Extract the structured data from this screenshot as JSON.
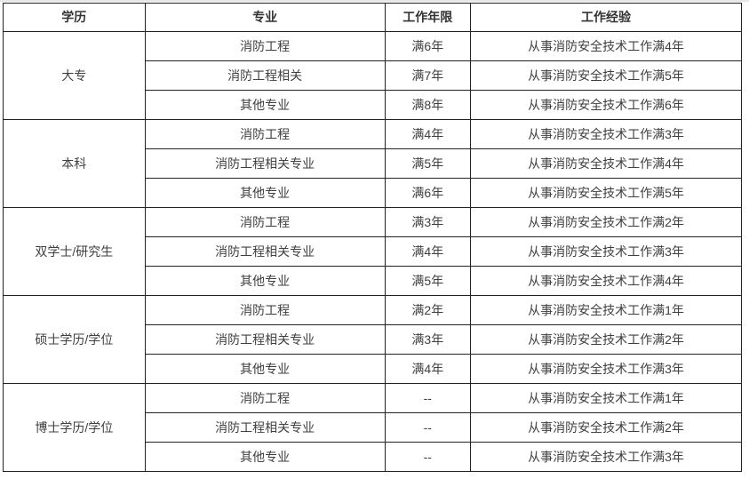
{
  "table": {
    "headers": {
      "education": "学历",
      "major": "专业",
      "years": "工作年限",
      "experience": "工作经验"
    },
    "groups": [
      {
        "education": "大专",
        "rows": [
          {
            "major": "消防工程",
            "years": "满6年",
            "experience": "从事消防安全技术工作满4年"
          },
          {
            "major": "消防工程相关",
            "years": "满7年",
            "experience": "从事消防安全技术工作满5年"
          },
          {
            "major": "其他专业",
            "years": "满8年",
            "experience": "从事消防安全技术工作满6年"
          }
        ]
      },
      {
        "education": "本科",
        "rows": [
          {
            "major": "消防工程",
            "years": "满4年",
            "experience": "从事消防安全技术工作满3年"
          },
          {
            "major": "消防工程相关专业",
            "years": "满5年",
            "experience": "从事消防安全技术工作满4年"
          },
          {
            "major": "其他专业",
            "years": "满6年",
            "experience": "从事消防安全技术工作满5年"
          }
        ]
      },
      {
        "education": "双学士/研究生",
        "rows": [
          {
            "major": "消防工程",
            "years": "满3年",
            "experience": "从事消防安全技术工作满2年"
          },
          {
            "major": "消防工程相关专业",
            "years": "满4年",
            "experience": "从事消防安全技术工作满3年"
          },
          {
            "major": "其他专业",
            "years": "满5年",
            "experience": "从事消防安全技术工作满4年"
          }
        ]
      },
      {
        "education": "硕士学历/学位",
        "rows": [
          {
            "major": "消防工程",
            "years": "满2年",
            "experience": "从事消防安全技术工作满1年"
          },
          {
            "major": "消防工程相关专业",
            "years": "满3年",
            "experience": "从事消防安全技术工作满2年"
          },
          {
            "major": "其他专业",
            "years": "满4年",
            "experience": "从事消防安全技术工作满3年"
          }
        ]
      },
      {
        "education": "博士学历/学位",
        "rows": [
          {
            "major": "消防工程",
            "years": "--",
            "experience": "从事消防安全技术工作满1年"
          },
          {
            "major": "消防工程相关专业",
            "years": "--",
            "experience": "从事消防安全技术工作满2年"
          },
          {
            "major": "其他专业",
            "years": "--",
            "experience": "从事消防安全技术工作满3年"
          }
        ]
      }
    ],
    "colors": {
      "border": "#222222",
      "text": "#3f3f3f",
      "background": "#ffffff",
      "top_strip": "#e7e7e7"
    }
  },
  "chart_data": {
    "type": "table",
    "title": "",
    "columns": [
      "学历",
      "专业",
      "工作年限",
      "工作经验"
    ],
    "rows": [
      [
        "大专",
        "消防工程",
        "满6年",
        "从事消防安全技术工作满4年"
      ],
      [
        "大专",
        "消防工程相关",
        "满7年",
        "从事消防安全技术工作满5年"
      ],
      [
        "大专",
        "其他专业",
        "满8年",
        "从事消防安全技术工作满6年"
      ],
      [
        "本科",
        "消防工程",
        "满4年",
        "从事消防安全技术工作满3年"
      ],
      [
        "本科",
        "消防工程相关专业",
        "满5年",
        "从事消防安全技术工作满4年"
      ],
      [
        "本科",
        "其他专业",
        "满6年",
        "从事消防安全技术工作满5年"
      ],
      [
        "双学士/研究生",
        "消防工程",
        "满3年",
        "从事消防安全技术工作满2年"
      ],
      [
        "双学士/研究生",
        "消防工程相关专业",
        "满4年",
        "从事消防安全技术工作满3年"
      ],
      [
        "双学士/研究生",
        "其他专业",
        "满5年",
        "从事消防安全技术工作满4年"
      ],
      [
        "硕士学历/学位",
        "消防工程",
        "满2年",
        "从事消防安全技术工作满1年"
      ],
      [
        "硕士学历/学位",
        "消防工程相关专业",
        "满3年",
        "从事消防安全技术工作满2年"
      ],
      [
        "硕士学历/学位",
        "其他专业",
        "满4年",
        "从事消防安全技术工作满3年"
      ],
      [
        "博士学历/学位",
        "消防工程",
        "--",
        "从事消防安全技术工作满1年"
      ],
      [
        "博士学历/学位",
        "消防工程相关专业",
        "--",
        "从事消防安全技术工作满2年"
      ],
      [
        "博士学历/学位",
        "其他专业",
        "--",
        "从事消防安全技术工作满3年"
      ]
    ],
    "layout": {
      "merged_first_column_groups": 5,
      "rows_per_group": 3,
      "grid": true
    }
  }
}
